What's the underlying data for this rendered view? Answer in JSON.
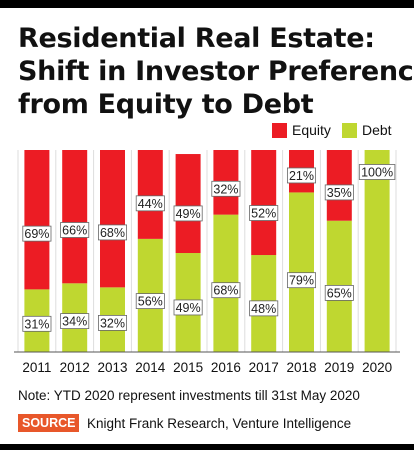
{
  "title_lines": [
    "Residential Real Estate:",
    "Shift in Investor Preference",
    "from Equity to Debt"
  ],
  "note": "Note: YTD 2020 represent investments till 31st May 2020",
  "source": {
    "tag": "SOURCE",
    "text": "Knight Frank Research, Venture Intelligence"
  },
  "colors": {
    "equity": "#ec1c24",
    "debt": "#bfd730",
    "grid": "#dddddd"
  },
  "chart_data": {
    "type": "bar",
    "stacked": true,
    "title": "Residential Real Estate: Shift in Investor Preference from Equity to Debt",
    "categories": [
      "2011",
      "2012",
      "2013",
      "2014",
      "2015",
      "2016",
      "2017",
      "2018",
      "2019",
      "2020"
    ],
    "series": [
      {
        "name": "Equity",
        "values": [
          69,
          66,
          68,
          44,
          49,
          32,
          52,
          21,
          35,
          0
        ],
        "labels": [
          "69%",
          "66%",
          "68%",
          "44%",
          "49%",
          "32%",
          "52%",
          "21%",
          "35%",
          ""
        ]
      },
      {
        "name": "Debt",
        "values": [
          31,
          34,
          32,
          56,
          49,
          68,
          48,
          79,
          65,
          100
        ],
        "labels": [
          "31%",
          "34%",
          "32%",
          "56%",
          "49%",
          "68%",
          "48%",
          "79%",
          "65%",
          "100%"
        ]
      }
    ],
    "ylim": [
      0,
      100
    ],
    "xlabel": "",
    "ylabel": "",
    "legend_position": "top-right",
    "grid": true
  }
}
